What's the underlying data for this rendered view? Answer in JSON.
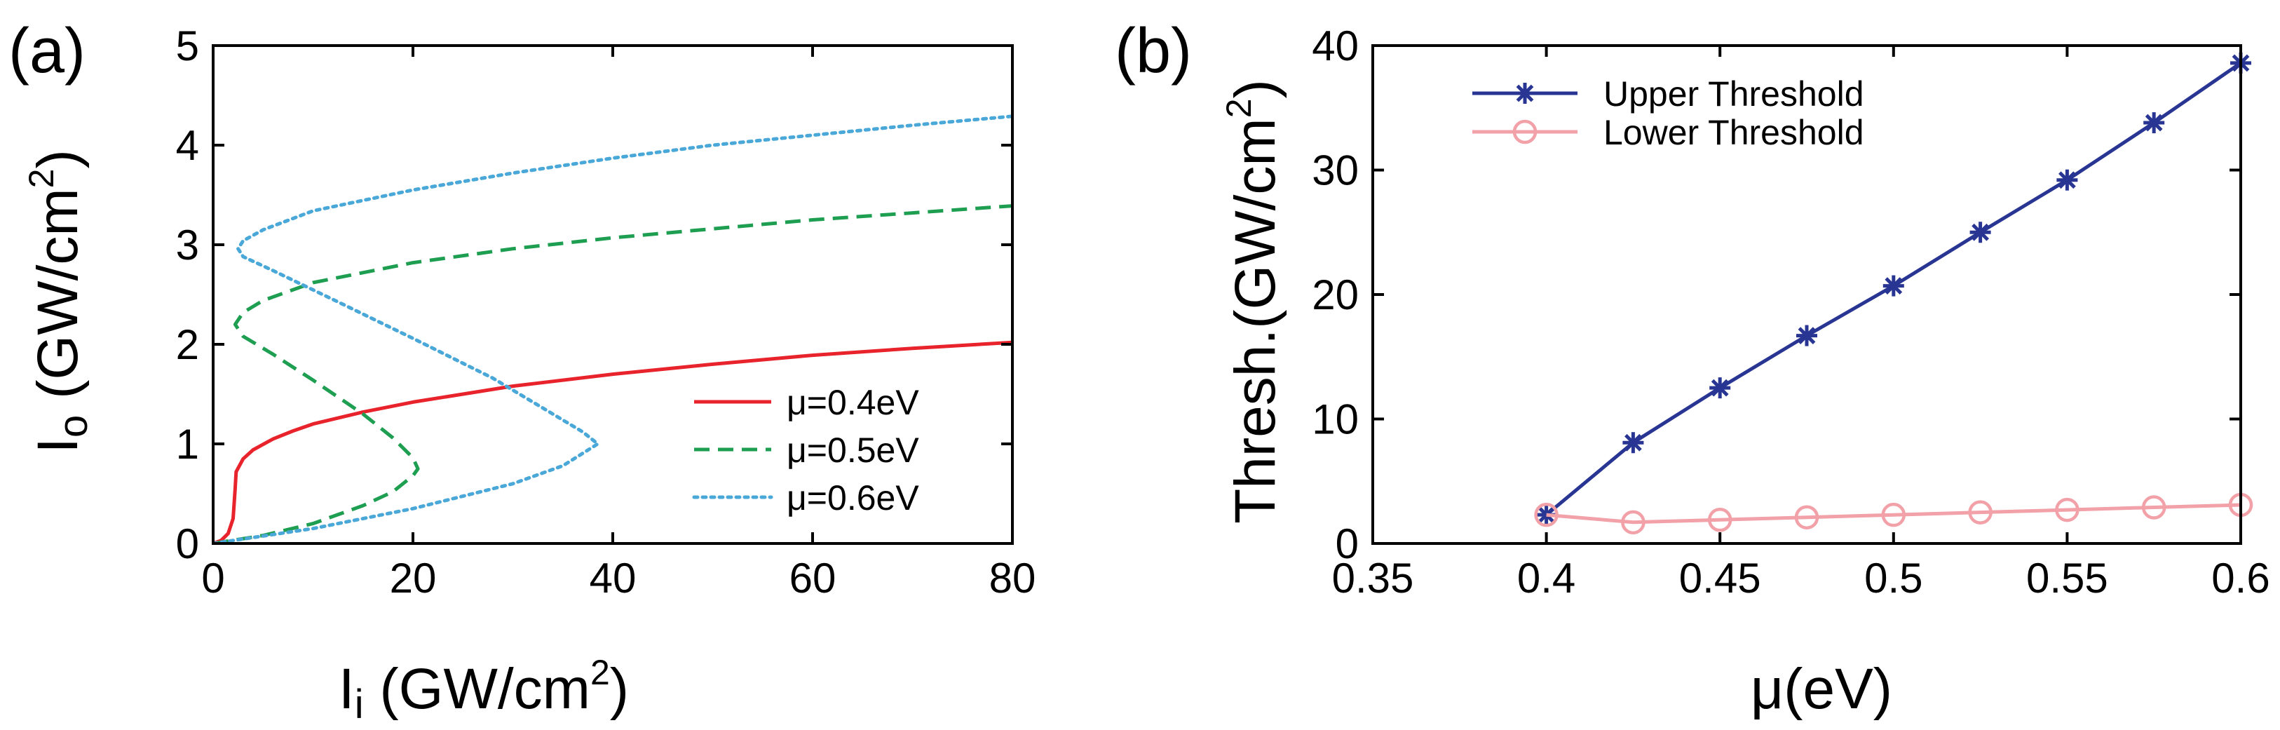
{
  "chart_data": [
    {
      "type": "line",
      "panel_label": "(a)",
      "xlabel": {
        "main": "I",
        "sub": "i",
        "text": " (GW/cm",
        "sup": "2",
        "close": ")"
      },
      "ylabel": {
        "main": "I",
        "sub": "o",
        "text": " (GW/cm",
        "sup": "2",
        "close": ")"
      },
      "xlim": [
        0,
        80
      ],
      "ylim": [
        0,
        5
      ],
      "xticks": [
        "0",
        "20",
        "40",
        "60",
        "80"
      ],
      "yticks": [
        "0",
        "1",
        "2",
        "3",
        "4",
        "5"
      ],
      "grid": false,
      "legend_position": "bottom-right",
      "series": [
        {
          "name": "μ=0.4eV",
          "color": "#e8232c",
          "style": "solid",
          "points": [
            [
              0,
              0
            ],
            [
              0.8,
              0.03
            ],
            [
              1.5,
              0.1
            ],
            [
              2,
              0.25
            ],
            [
              2.2,
              0.55
            ],
            [
              2.3,
              0.72
            ],
            [
              3,
              0.85
            ],
            [
              4,
              0.94
            ],
            [
              6,
              1.05
            ],
            [
              8,
              1.13
            ],
            [
              10,
              1.2
            ],
            [
              15,
              1.32
            ],
            [
              20,
              1.42
            ],
            [
              30,
              1.58
            ],
            [
              40,
              1.7
            ],
            [
              50,
              1.8
            ],
            [
              60,
              1.89
            ],
            [
              70,
              1.96
            ],
            [
              80,
              2.02
            ]
          ]
        },
        {
          "name": "μ=0.5eV",
          "color": "#1e9e50",
          "style": "dashed",
          "points": [
            [
              0,
              0
            ],
            [
              5,
              0.08
            ],
            [
              10,
              0.2
            ],
            [
              15,
              0.38
            ],
            [
              18,
              0.52
            ],
            [
              20,
              0.68
            ],
            [
              20.5,
              0.75
            ],
            [
              20,
              0.86
            ],
            [
              18,
              1.06
            ],
            [
              15,
              1.3
            ],
            [
              10,
              1.64
            ],
            [
              6,
              1.9
            ],
            [
              3,
              2.08
            ],
            [
              2.2,
              2.2
            ],
            [
              3,
              2.32
            ],
            [
              5,
              2.44
            ],
            [
              10,
              2.62
            ],
            [
              20,
              2.82
            ],
            [
              30,
              2.96
            ],
            [
              40,
              3.07
            ],
            [
              50,
              3.16
            ],
            [
              60,
              3.25
            ],
            [
              70,
              3.32
            ],
            [
              80,
              3.39
            ]
          ]
        },
        {
          "name": "μ=0.6eV",
          "color": "#4aa8d8",
          "style": "dotted",
          "points": [
            [
              0,
              0
            ],
            [
              10,
              0.15
            ],
            [
              20,
              0.35
            ],
            [
              30,
              0.6
            ],
            [
              35,
              0.78
            ],
            [
              38.5,
              1.0
            ],
            [
              37,
              1.12
            ],
            [
              33,
              1.36
            ],
            [
              28,
              1.66
            ],
            [
              20,
              2.06
            ],
            [
              12,
              2.45
            ],
            [
              6,
              2.74
            ],
            [
              3,
              2.88
            ],
            [
              2.5,
              2.96
            ],
            [
              3,
              3.04
            ],
            [
              5,
              3.15
            ],
            [
              10,
              3.34
            ],
            [
              20,
              3.55
            ],
            [
              30,
              3.72
            ],
            [
              40,
              3.87
            ],
            [
              50,
              4.0
            ],
            [
              60,
              4.1
            ],
            [
              70,
              4.2
            ],
            [
              80,
              4.29
            ]
          ]
        }
      ]
    },
    {
      "type": "line",
      "panel_label": "(b)",
      "xlabel": {
        "text": "μ(eV)"
      },
      "ylabel": {
        "text": "Thresh.(GW/cm",
        "sup": "2",
        "close": ")"
      },
      "xlim": [
        0.35,
        0.6
      ],
      "ylim": [
        0,
        40
      ],
      "xticks": [
        "0.35",
        "0.4",
        "0.45",
        "0.5",
        "0.55",
        "0.6"
      ],
      "yticks": [
        "0",
        "10",
        "20",
        "30",
        "40"
      ],
      "grid": false,
      "legend_position": "top-left",
      "x": [
        0.4,
        0.425,
        0.45,
        0.475,
        0.5,
        0.525,
        0.55,
        0.575,
        0.6
      ],
      "series": [
        {
          "name": "Upper Threshold",
          "color": "#283593",
          "marker": "asterisk",
          "values": [
            2.3,
            8.1,
            12.5,
            16.7,
            20.7,
            25.0,
            29.2,
            33.8,
            38.6
          ]
        },
        {
          "name": "Lower Threshold",
          "color": "#f1a1a7",
          "marker": "circle",
          "values": [
            2.3,
            1.7,
            1.9,
            2.1,
            2.3,
            2.5,
            2.7,
            2.9,
            3.1
          ]
        }
      ]
    }
  ]
}
